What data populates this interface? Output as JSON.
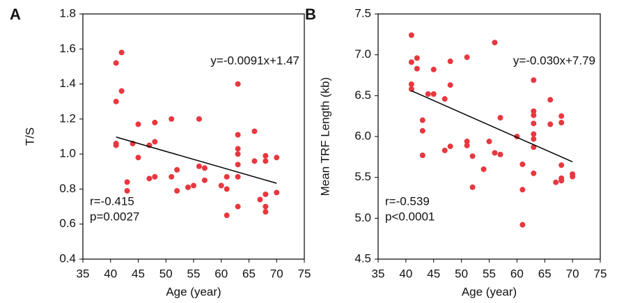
{
  "chart_data": [
    {
      "type": "scatter",
      "panel_label": "A",
      "xlabel": "Age (year)",
      "ylabel": "T/S",
      "color": "#e8373f",
      "xlim": [
        35,
        75
      ],
      "xticks": [
        35,
        40,
        45,
        50,
        55,
        60,
        65,
        70,
        75
      ],
      "ylim": [
        0.4,
        1.8
      ],
      "yticks": [
        0.4,
        0.6,
        0.8,
        {
          "value": 1,
          "label": "1.0"
        },
        1.2,
        1.4,
        1.6,
        1.8
      ],
      "annotations": [
        "y=-0.0091x+1.47",
        "r=-0.415",
        "p=0.0027"
      ],
      "x": [
        41,
        41,
        41,
        41,
        42,
        42,
        43,
        43,
        44,
        45,
        45,
        47,
        47,
        48,
        48,
        48,
        51,
        51,
        52,
        52,
        54,
        55,
        56,
        56,
        57,
        57,
        60,
        61,
        61,
        61,
        63,
        63,
        63,
        63,
        63,
        63,
        63,
        66,
        66,
        67,
        68,
        68,
        68,
        68,
        68,
        70,
        70
      ],
      "values": [
        1.52,
        1.3,
        1.06,
        1.05,
        1.58,
        1.36,
        0.84,
        0.79,
        1.06,
        1.17,
        0.98,
        1.05,
        0.86,
        1.18,
        1.07,
        0.87,
        1.2,
        0.87,
        0.91,
        0.79,
        0.81,
        0.82,
        1.2,
        0.93,
        0.92,
        0.85,
        0.82,
        0.87,
        0.8,
        0.65,
        1.4,
        1.11,
        1.03,
        1.0,
        0.94,
        0.87,
        0.7,
        1.13,
        0.96,
        0.74,
        0.99,
        0.96,
        0.77,
        0.7,
        0.67,
        0.98,
        0.78
      ],
      "trendline": {
        "x": [
          41,
          70
        ],
        "y": [
          1.097,
          0.833
        ]
      }
    },
    {
      "type": "scatter",
      "panel_label": "B",
      "xlabel": "Age (year)",
      "ylabel": "Mean TRF Length (kb)",
      "color": "#e8373f",
      "xlim": [
        35,
        75
      ],
      "xticks": [
        35,
        40,
        45,
        50,
        55,
        60,
        65,
        70,
        75
      ],
      "ylim": [
        4.5,
        7.5
      ],
      "yticks": [
        4.5,
        {
          "value": 5,
          "label": "5.0"
        },
        5.5,
        {
          "value": 6,
          "label": "6.0"
        },
        6.5,
        {
          "value": 7,
          "label": "7.0"
        },
        7.5
      ],
      "annotations": [
        "y=-0.030x+7.79",
        "r=-0.539",
        "p<0.0001"
      ],
      "x": [
        41,
        41,
        41,
        41,
        42,
        42,
        43,
        43,
        43,
        44,
        45,
        45,
        47,
        47,
        48,
        48,
        48,
        51,
        51,
        51,
        52,
        52,
        54,
        55,
        56,
        56,
        57,
        57,
        60,
        61,
        61,
        61,
        63,
        63,
        63,
        63,
        63,
        63,
        63,
        63,
        66,
        66,
        67,
        68,
        68,
        68,
        68,
        68,
        70,
        70
      ],
      "values": [
        7.24,
        6.91,
        6.64,
        6.58,
        6.96,
        6.83,
        6.2,
        6.07,
        5.77,
        6.52,
        6.82,
        6.52,
        6.46,
        5.83,
        6.92,
        6.63,
        5.88,
        6.97,
        5.94,
        5.89,
        5.76,
        5.38,
        5.6,
        5.94,
        7.15,
        5.8,
        6.23,
        5.78,
        6.0,
        5.66,
        5.35,
        4.92,
        6.69,
        6.31,
        6.26,
        6.16,
        6.03,
        5.97,
        5.87,
        5.55,
        6.45,
        6.15,
        5.44,
        6.25,
        6.17,
        5.65,
        5.49,
        5.46,
        5.54,
        5.51
      ],
      "trendline": {
        "x": [
          41,
          70
        ],
        "y": [
          6.56,
          5.69
        ]
      }
    }
  ]
}
